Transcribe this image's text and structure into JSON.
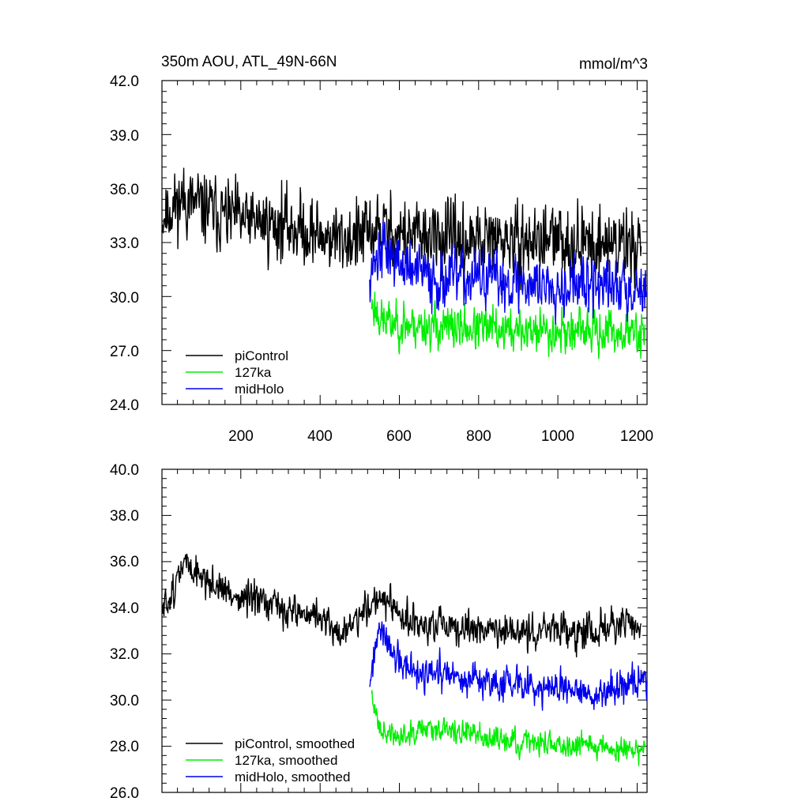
{
  "chart_data": [
    {
      "type": "line",
      "title": "350m AOU, ATL_49N-66N",
      "units": "mmol/m^3",
      "xlim": [
        1,
        1225
      ],
      "ylim": [
        24.0,
        42.0
      ],
      "yticks": [
        "24.0",
        "27.0",
        "30.0",
        "33.0",
        "36.0",
        "39.0",
        "42.0"
      ],
      "xticks": [
        "200",
        "400",
        "600",
        "800",
        "1000",
        "1200"
      ],
      "grid": false,
      "legend_placement": "bottom-left",
      "series": [
        {
          "name": "piControl",
          "color": "#000000",
          "x_range": [
            1,
            1210
          ],
          "anchors": [
            [
              1,
              34.5
            ],
            [
              50,
              35.4
            ],
            [
              100,
              35.0
            ],
            [
              150,
              34.6
            ],
            [
              200,
              34.2
            ],
            [
              250,
              34.1
            ],
            [
              300,
              34.0
            ],
            [
              350,
              33.8
            ],
            [
              400,
              33.4
            ],
            [
              450,
              33.2
            ],
            [
              500,
              33.3
            ],
            [
              550,
              33.8
            ],
            [
              600,
              33.5
            ],
            [
              650,
              33.3
            ],
            [
              700,
              33.2
            ],
            [
              750,
              33.1
            ],
            [
              800,
              33.0
            ],
            [
              850,
              33.1
            ],
            [
              900,
              33.0
            ],
            [
              950,
              33.1
            ],
            [
              1000,
              33.1
            ],
            [
              1050,
              33.0
            ],
            [
              1100,
              33.0
            ],
            [
              1150,
              33.0
            ],
            [
              1210,
              32.9
            ]
          ],
          "noise": 2.0,
          "seed": 11
        },
        {
          "name": "127ka",
          "color": "#00ee00",
          "x_range": [
            530,
            1220
          ],
          "anchors": [
            [
              530,
              29.6
            ],
            [
              560,
              28.6
            ],
            [
              600,
              28.5
            ],
            [
              650,
              28.4
            ],
            [
              700,
              28.3
            ],
            [
              800,
              28.2
            ],
            [
              900,
              28.1
            ],
            [
              1000,
              28.1
            ],
            [
              1100,
              28.0
            ],
            [
              1220,
              28.0
            ]
          ],
          "noise": 1.3,
          "seed": 23
        },
        {
          "name": "midHolo",
          "color": "#0000ee",
          "x_range": [
            525,
            1225
          ],
          "anchors": [
            [
              525,
              31.5
            ],
            [
              560,
              32.8
            ],
            [
              600,
              31.8
            ],
            [
              650,
              31.3
            ],
            [
              700,
              31.0
            ],
            [
              800,
              31.0
            ],
            [
              900,
              30.8
            ],
            [
              1000,
              30.7
            ],
            [
              1100,
              30.6
            ],
            [
              1225,
              30.5
            ]
          ],
          "noise": 1.7,
          "seed": 37
        }
      ]
    },
    {
      "type": "line",
      "xlim": [
        1,
        1225
      ],
      "ylim": [
        26.0,
        40.0
      ],
      "yticks": [
        "26.0",
        "28.0",
        "30.0",
        "32.0",
        "34.0",
        "36.0",
        "38.0",
        "40.0"
      ],
      "grid": false,
      "legend_placement": "bottom-left",
      "series": [
        {
          "name": "piControl, smoothed",
          "color": "#000000",
          "x_range": [
            1,
            1210
          ],
          "anchors": [
            [
              1,
              33.8
            ],
            [
              30,
              34.8
            ],
            [
              60,
              36.0
            ],
            [
              100,
              35.4
            ],
            [
              150,
              34.8
            ],
            [
              200,
              34.4
            ],
            [
              250,
              34.2
            ],
            [
              300,
              34.0
            ],
            [
              350,
              33.8
            ],
            [
              400,
              33.6
            ],
            [
              450,
              32.8
            ],
            [
              500,
              33.6
            ],
            [
              550,
              34.6
            ],
            [
              600,
              33.6
            ],
            [
              650,
              33.2
            ],
            [
              700,
              33.2
            ],
            [
              750,
              33.0
            ],
            [
              800,
              33.2
            ],
            [
              850,
              33.0
            ],
            [
              900,
              32.8
            ],
            [
              950,
              33.1
            ],
            [
              1000,
              33.0
            ],
            [
              1050,
              33.0
            ],
            [
              1100,
              33.0
            ],
            [
              1150,
              33.2
            ],
            [
              1210,
              33.3
            ]
          ],
          "noise": 0.75,
          "seed": 51
        },
        {
          "name": "127ka, smoothed",
          "color": "#00ee00",
          "x_range": [
            530,
            1220
          ],
          "anchors": [
            [
              530,
              30.0
            ],
            [
              560,
              28.6
            ],
            [
              600,
              28.4
            ],
            [
              650,
              28.9
            ],
            [
              700,
              28.8
            ],
            [
              750,
              28.6
            ],
            [
              800,
              28.5
            ],
            [
              850,
              28.3
            ],
            [
              900,
              28.1
            ],
            [
              950,
              28.2
            ],
            [
              1000,
              28.0
            ],
            [
              1050,
              28.2
            ],
            [
              1100,
              28.1
            ],
            [
              1150,
              27.8
            ],
            [
              1220,
              27.9
            ]
          ],
          "noise": 0.55,
          "seed": 63
        },
        {
          "name": "midHolo, smoothed",
          "color": "#0000ee",
          "x_range": [
            525,
            1225
          ],
          "anchors": [
            [
              525,
              30.8
            ],
            [
              550,
              33.0
            ],
            [
              600,
              31.6
            ],
            [
              650,
              31.0
            ],
            [
              700,
              31.1
            ],
            [
              750,
              30.9
            ],
            [
              800,
              30.8
            ],
            [
              850,
              30.6
            ],
            [
              900,
              30.9
            ],
            [
              950,
              30.6
            ],
            [
              1000,
              30.4
            ],
            [
              1050,
              30.4
            ],
            [
              1100,
              30.2
            ],
            [
              1150,
              30.6
            ],
            [
              1225,
              30.8
            ]
          ],
          "noise": 0.75,
          "seed": 77
        }
      ]
    }
  ]
}
